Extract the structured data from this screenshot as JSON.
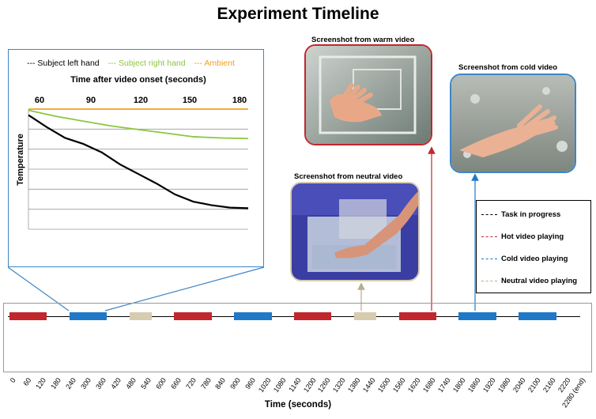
{
  "title": "Experiment Timeline",
  "inset": {
    "legend": {
      "left_hand": "--- Subject left hand",
      "right_hand": "--- Subject right hand",
      "ambient": "--- Ambient"
    },
    "x_title": "Time after video onset (seconds)",
    "y_title": "Temperature",
    "ticks": [
      "60",
      "90",
      "120",
      "150",
      "180"
    ]
  },
  "screenshots": {
    "warm": "Screenshot from warm video",
    "cold": "Screenshot from cold video",
    "neutral": "Screenshot from neutral video"
  },
  "key": {
    "task": "Task in progress",
    "hot": "Hot video playing",
    "cold": "Cold video playing",
    "neutral": "Neutral video playing"
  },
  "colors": {
    "hot": "#c1272d",
    "cold": "#1f78c8",
    "neutral": "#d6ccb0",
    "task": "#000000",
    "left_hand": "#000000",
    "right_hand": "#8cc63f",
    "ambient": "#f0a020"
  },
  "timeline": {
    "x_title": "Time (seconds)",
    "ticks": [
      "0",
      "60",
      "120",
      "180",
      "240",
      "300",
      "360",
      "420",
      "480",
      "540",
      "600",
      "660",
      "720",
      "780",
      "840",
      "900",
      "960",
      "1020",
      "1080",
      "1140",
      "1200",
      "1260",
      "1320",
      "1380",
      "1440",
      "1500",
      "1560",
      "1620",
      "1680",
      "1740",
      "1800",
      "1860",
      "1920",
      "1980",
      "2040",
      "2100",
      "2160",
      "2220",
      "2280 (end)"
    ],
    "segments": [
      {
        "type": "hot",
        "start": 0,
        "end": 150
      },
      {
        "type": "cold",
        "start": 240,
        "end": 390
      },
      {
        "type": "neutral",
        "start": 480,
        "end": 570
      },
      {
        "type": "hot",
        "start": 660,
        "end": 810
      },
      {
        "type": "cold",
        "start": 900,
        "end": 1050
      },
      {
        "type": "hot",
        "start": 1140,
        "end": 1290
      },
      {
        "type": "neutral",
        "start": 1380,
        "end": 1470
      },
      {
        "type": "hot",
        "start": 1560,
        "end": 1710
      },
      {
        "type": "cold",
        "start": 1800,
        "end": 1950
      },
      {
        "type": "cold",
        "start": 2040,
        "end": 2190
      }
    ]
  },
  "chart_data": {
    "type": "line",
    "xlabel": "Time after video onset (seconds)",
    "ylabel": "Temperature",
    "xlim": [
      60,
      180
    ],
    "series": [
      {
        "name": "Subject left hand",
        "x": [
          60,
          70,
          80,
          90,
          100,
          110,
          120,
          130,
          140,
          150,
          160,
          170,
          180
        ],
        "y": [
          95,
          85,
          76,
          71,
          64,
          54,
          46,
          38,
          29,
          23,
          20,
          18,
          17.5
        ]
      },
      {
        "name": "Subject right hand",
        "x": [
          60,
          75,
          90,
          105,
          120,
          135,
          150,
          165,
          180
        ],
        "y": [
          99,
          94,
          90,
          86,
          83,
          80,
          77,
          76,
          75.5
        ]
      },
      {
        "name": "Ambient",
        "x": [
          60,
          180
        ],
        "y": [
          100,
          100
        ]
      }
    ]
  }
}
